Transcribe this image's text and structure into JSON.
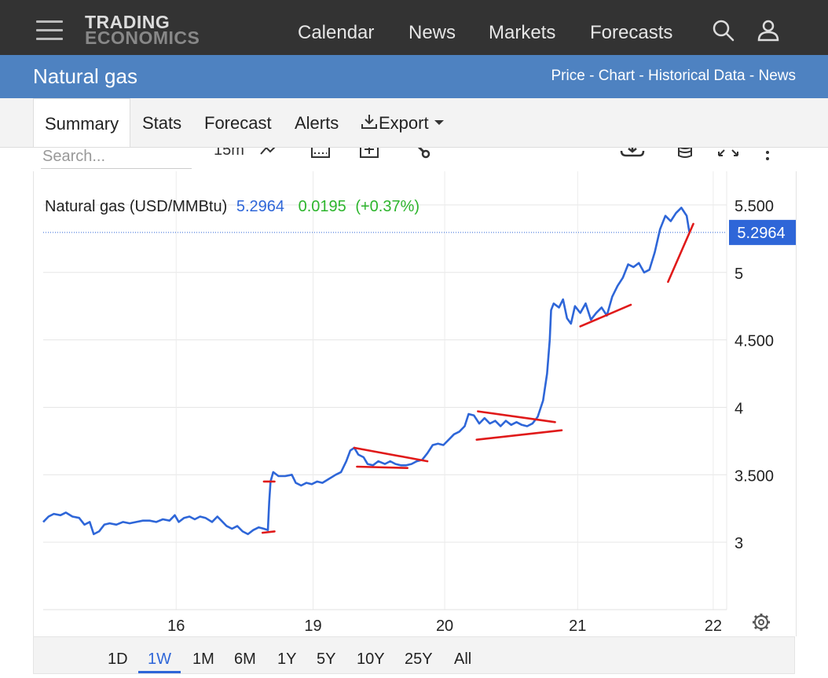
{
  "logo": {
    "line1": "TRADING",
    "line2": "ECONOMICS"
  },
  "nav": {
    "items": [
      "Calendar",
      "News",
      "Markets",
      "Forecasts"
    ]
  },
  "icons": {
    "menu": "hamburger-icon",
    "search": "search-icon",
    "user": "user-icon"
  },
  "page": {
    "title": "Natural gas",
    "links": [
      "Price",
      "Chart",
      "Historical Data",
      "News"
    ],
    "link_separator": " - "
  },
  "tabs": {
    "items": [
      "Summary",
      "Stats",
      "Forecast",
      "Alerts"
    ],
    "export_label": "Export",
    "active": "Summary"
  },
  "toolbar": {
    "search_placeholder": "Search...",
    "interval": "15m"
  },
  "colors": {
    "series": "#2e66d8",
    "change": "#2db52d",
    "trendline": "#e01a1a",
    "header": "#333333",
    "titlebar": "#4e82c1"
  },
  "chart_data": {
    "type": "line",
    "title": "Natural gas (USD/MMBtu)",
    "last_value": "5.2964",
    "change": "0.0195",
    "change_pct": "(+0.37%)",
    "ylim": [
      2.5,
      5.75
    ],
    "y_ticks": [
      3,
      3.5,
      4,
      4.5,
      5,
      5.5
    ],
    "y_tick_labels": [
      "3",
      "3.500",
      "4",
      "4.500",
      "5",
      "5.500"
    ],
    "x_ticks": [
      1.0,
      2.03,
      3.02,
      4.02,
      5.04
    ],
    "x_tick_labels": [
      "16",
      "19",
      "20",
      "21",
      "22"
    ],
    "x_range": [
      0,
      5.07
    ],
    "series": [
      {
        "points": [
          [
            0.0,
            3.15
          ],
          [
            0.04,
            3.19
          ],
          [
            0.08,
            3.21
          ],
          [
            0.13,
            3.2
          ],
          [
            0.17,
            3.22
          ],
          [
            0.22,
            3.19
          ],
          [
            0.27,
            3.18
          ],
          [
            0.31,
            3.13
          ],
          [
            0.35,
            3.15
          ],
          [
            0.38,
            3.06
          ],
          [
            0.42,
            3.08
          ],
          [
            0.46,
            3.13
          ],
          [
            0.5,
            3.14
          ],
          [
            0.55,
            3.13
          ],
          [
            0.6,
            3.15
          ],
          [
            0.65,
            3.14
          ],
          [
            0.7,
            3.15
          ],
          [
            0.75,
            3.16
          ],
          [
            0.8,
            3.16
          ],
          [
            0.85,
            3.15
          ],
          [
            0.9,
            3.17
          ],
          [
            0.95,
            3.16
          ],
          [
            0.99,
            3.2
          ],
          [
            1.02,
            3.15
          ],
          [
            1.06,
            3.18
          ],
          [
            1.1,
            3.19
          ],
          [
            1.14,
            3.17
          ],
          [
            1.18,
            3.19
          ],
          [
            1.22,
            3.18
          ],
          [
            1.27,
            3.15
          ],
          [
            1.31,
            3.19
          ],
          [
            1.34,
            3.16
          ],
          [
            1.38,
            3.12
          ],
          [
            1.42,
            3.1
          ],
          [
            1.46,
            3.12
          ],
          [
            1.5,
            3.08
          ],
          [
            1.54,
            3.06
          ],
          [
            1.58,
            3.09
          ],
          [
            1.62,
            3.11
          ],
          [
            1.66,
            3.1
          ],
          [
            1.69,
            3.09
          ],
          [
            1.7,
            3.3
          ],
          [
            1.71,
            3.45
          ],
          [
            1.73,
            3.52
          ],
          [
            1.77,
            3.49
          ],
          [
            1.82,
            3.49
          ],
          [
            1.87,
            3.5
          ],
          [
            1.9,
            3.44
          ],
          [
            1.94,
            3.42
          ],
          [
            1.98,
            3.44
          ],
          [
            2.02,
            3.43
          ],
          [
            2.06,
            3.45
          ],
          [
            2.1,
            3.44
          ],
          [
            2.15,
            3.47
          ],
          [
            2.2,
            3.5
          ],
          [
            2.24,
            3.52
          ],
          [
            2.28,
            3.6
          ],
          [
            2.31,
            3.68
          ],
          [
            2.34,
            3.7
          ],
          [
            2.37,
            3.65
          ],
          [
            2.41,
            3.63
          ],
          [
            2.44,
            3.58
          ],
          [
            2.48,
            3.57
          ],
          [
            2.52,
            3.6
          ],
          [
            2.57,
            3.58
          ],
          [
            2.61,
            3.6
          ],
          [
            2.65,
            3.58
          ],
          [
            2.69,
            3.57
          ],
          [
            2.73,
            3.57
          ],
          [
            2.77,
            3.58
          ],
          [
            2.81,
            3.6
          ],
          [
            2.85,
            3.61
          ],
          [
            2.89,
            3.66
          ],
          [
            2.93,
            3.72
          ],
          [
            2.97,
            3.73
          ],
          [
            3.01,
            3.72
          ],
          [
            3.05,
            3.76
          ],
          [
            3.09,
            3.8
          ],
          [
            3.13,
            3.82
          ],
          [
            3.17,
            3.86
          ],
          [
            3.2,
            3.95
          ],
          [
            3.24,
            3.94
          ],
          [
            3.28,
            3.88
          ],
          [
            3.32,
            3.92
          ],
          [
            3.36,
            3.88
          ],
          [
            3.4,
            3.9
          ],
          [
            3.44,
            3.86
          ],
          [
            3.48,
            3.9
          ],
          [
            3.52,
            3.87
          ],
          [
            3.56,
            3.89
          ],
          [
            3.6,
            3.87
          ],
          [
            3.64,
            3.86
          ],
          [
            3.68,
            3.88
          ],
          [
            3.72,
            3.93
          ],
          [
            3.76,
            4.05
          ],
          [
            3.79,
            4.25
          ],
          [
            3.81,
            4.5
          ],
          [
            3.82,
            4.72
          ],
          [
            3.84,
            4.77
          ],
          [
            3.88,
            4.74
          ],
          [
            3.91,
            4.8
          ],
          [
            3.94,
            4.66
          ],
          [
            3.97,
            4.62
          ],
          [
            4.0,
            4.75
          ],
          [
            4.04,
            4.7
          ],
          [
            4.08,
            4.77
          ],
          [
            4.12,
            4.65
          ],
          [
            4.16,
            4.7
          ],
          [
            4.2,
            4.74
          ],
          [
            4.24,
            4.68
          ],
          [
            4.28,
            4.82
          ],
          [
            4.32,
            4.9
          ],
          [
            4.36,
            4.96
          ],
          [
            4.4,
            5.06
          ],
          [
            4.44,
            5.04
          ],
          [
            4.48,
            5.07
          ],
          [
            4.52,
            5.0
          ],
          [
            4.56,
            5.02
          ],
          [
            4.6,
            5.15
          ],
          [
            4.64,
            5.32
          ],
          [
            4.68,
            5.42
          ],
          [
            4.72,
            5.38
          ],
          [
            4.76,
            5.44
          ],
          [
            4.8,
            5.48
          ],
          [
            4.84,
            5.42
          ],
          [
            4.86,
            5.3
          ]
        ]
      }
    ],
    "trendlines": [
      [
        [
          1.65,
          3.07
        ],
        [
          1.74,
          3.08
        ]
      ],
      [
        [
          1.66,
          3.45
        ],
        [
          1.74,
          3.45
        ]
      ],
      [
        [
          2.34,
          3.7
        ],
        [
          2.89,
          3.6
        ]
      ],
      [
        [
          2.36,
          3.56
        ],
        [
          2.74,
          3.55
        ]
      ],
      [
        [
          3.27,
          3.97
        ],
        [
          3.85,
          3.89
        ]
      ],
      [
        [
          3.26,
          3.76
        ],
        [
          3.9,
          3.83
        ]
      ],
      [
        [
          4.04,
          4.6
        ],
        [
          4.42,
          4.76
        ]
      ],
      [
        [
          4.7,
          4.93
        ],
        [
          4.89,
          5.36
        ]
      ]
    ]
  },
  "ranges": {
    "items": [
      "1D",
      "1W",
      "1M",
      "6M",
      "1Y",
      "5Y",
      "10Y",
      "25Y",
      "All"
    ],
    "active": "1W"
  }
}
